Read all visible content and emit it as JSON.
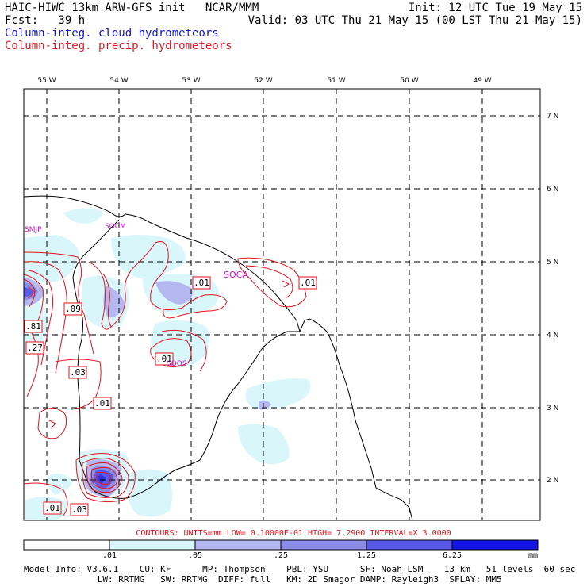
{
  "header": {
    "title": "HAIC-HIWC 13km ARW-GFS init   NCAR/MMM",
    "init": "Init: 12 UTC Tue 19 May 15",
    "fcst": "Fcst:   39 h",
    "valid": "Valid: 03 UTC Thu 21 May 15 (00 LST Thu 21 May 15)",
    "legend_cloud": "Column-integ. cloud hydrometeors",
    "legend_precip": "Column-integ. precip. hydrometeors"
  },
  "colors": {
    "cloud": "#1414d2",
    "precip": "#e0141e",
    "fill1": "#d9f6fb",
    "fill2": "#b3b8f0",
    "fill3": "#8a8ce6",
    "fill4": "#5a5ae6",
    "fill5": "#3232e6",
    "fill6": "#1414e6"
  },
  "map": {
    "lon_labels": [
      "55 W",
      "54 W",
      "53 W",
      "52 W",
      "51 W",
      "50 W",
      "49 W"
    ],
    "lat_labels": [
      "7 N",
      "6 N",
      "5 N",
      "4 N",
      "3 N",
      "2 N"
    ],
    "stations": [
      "SMJP",
      "SOCM",
      "SOCA",
      "SOOS"
    ],
    "contour_labels": [
      ".01",
      ".01",
      ".09",
      ".81",
      ".27",
      ".03",
      ".01",
      ".01",
      ".01",
      ".03"
    ]
  },
  "footer": {
    "contours": "CONTOURS:  UNITS=mm  LOW= 0.10000E-01  HIGH=  7.2900     INTERVAL=X  3.0000",
    "colorbar_labels": [
      ".01",
      ".05",
      ".25",
      "1.25",
      "6.25",
      "mm"
    ],
    "model_line1": "Model Info: V3.6.1    CU: KF      MP: Thompson    PBL: YSU      SF: Noah LSM    13 km   51 levels  60 sec",
    "model_line2": "              LW: RRTMG   SW: RRTMG  DIFF: full   KM: 2D Smagor DAMP: Rayleigh3  SFLAY: MM5"
  }
}
